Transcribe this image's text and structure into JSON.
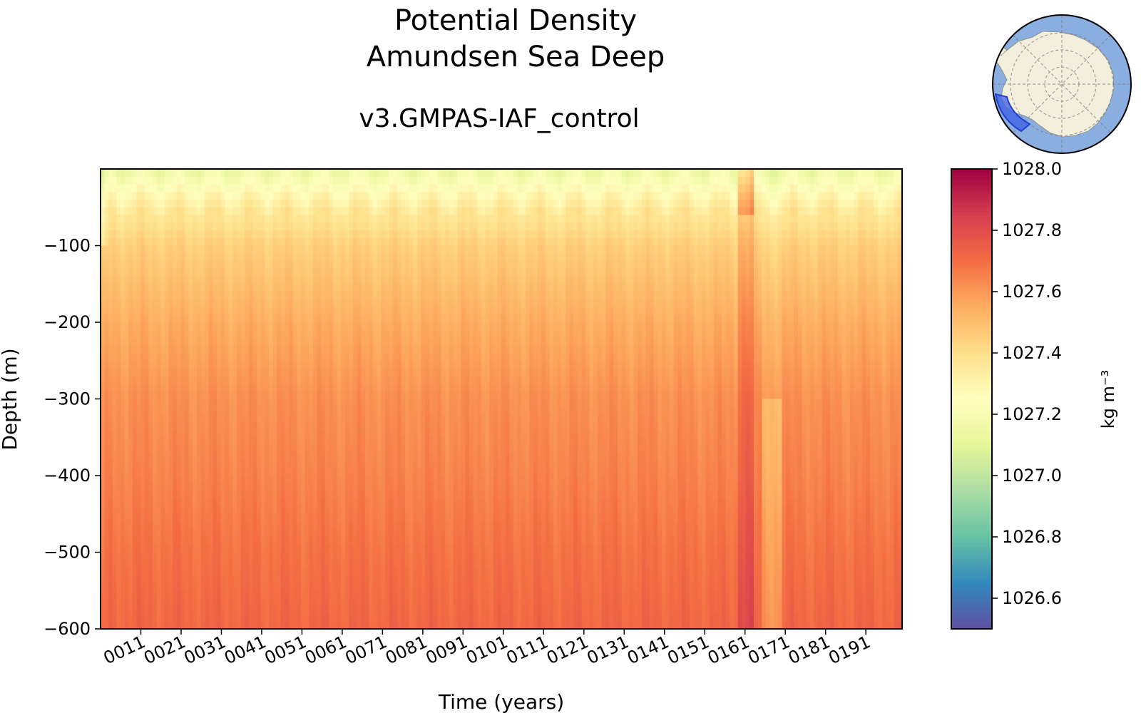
{
  "chart_data": {
    "type": "heatmap",
    "title": "Potential Density",
    "subtitle": "Amundsen Sea Deep",
    "run_name": "v3.GMPAS-IAF_control",
    "xlabel": "Time (years)",
    "ylabel": "Depth (m)",
    "xlim": [
      1,
      200
    ],
    "ylim": [
      -600,
      0
    ],
    "x_ticks": [
      "0011",
      "0021",
      "0031",
      "0041",
      "0051",
      "0061",
      "0071",
      "0081",
      "0091",
      "0101",
      "0111",
      "0121",
      "0131",
      "0141",
      "0151",
      "0161",
      "0171",
      "0181",
      "0191"
    ],
    "x_tick_values": [
      11,
      21,
      31,
      41,
      51,
      61,
      71,
      81,
      91,
      101,
      111,
      121,
      131,
      141,
      151,
      161,
      171,
      181,
      191
    ],
    "y_ticks": [
      -100,
      -200,
      -300,
      -400,
      -500,
      -600
    ],
    "y_tick_labels": [
      "−100",
      "−200",
      "−300",
      "−400",
      "−500",
      "−600"
    ],
    "colormap": "Spectral_r",
    "colorbar": {
      "label": "kg m⁻³",
      "vmin": 1026.5,
      "vmax": 1028.0,
      "ticks": [
        1028.0,
        1027.8,
        1027.6,
        1027.4,
        1027.2,
        1027.0,
        1026.8,
        1026.6
      ],
      "tick_labels": [
        "1028.0",
        "1027.8",
        "1027.6",
        "1027.4",
        "1027.2",
        "1027.0",
        "1026.8",
        "1026.6"
      ]
    },
    "depth_profile_levels": [
      -600,
      -500,
      -400,
      -300,
      -200,
      -100,
      -50,
      0
    ],
    "depth_profile_values": [
      1027.72,
      1027.69,
      1027.65,
      1027.62,
      1027.55,
      1027.45,
      1027.35,
      1027.15
    ],
    "anomalies": [
      {
        "years": [
          159,
          163
        ],
        "delta": 0.1,
        "note": "high density column"
      },
      {
        "years": [
          165,
          170
        ],
        "delta": -0.1,
        "note": "lower density column at depth"
      }
    ],
    "inset_map": {
      "type": "south-polar-map",
      "region": "Amundsen Sea Deep",
      "ocean_color": "#8aaee0",
      "land_color": "#f2efdc",
      "region_color": "#3b5de7"
    }
  }
}
